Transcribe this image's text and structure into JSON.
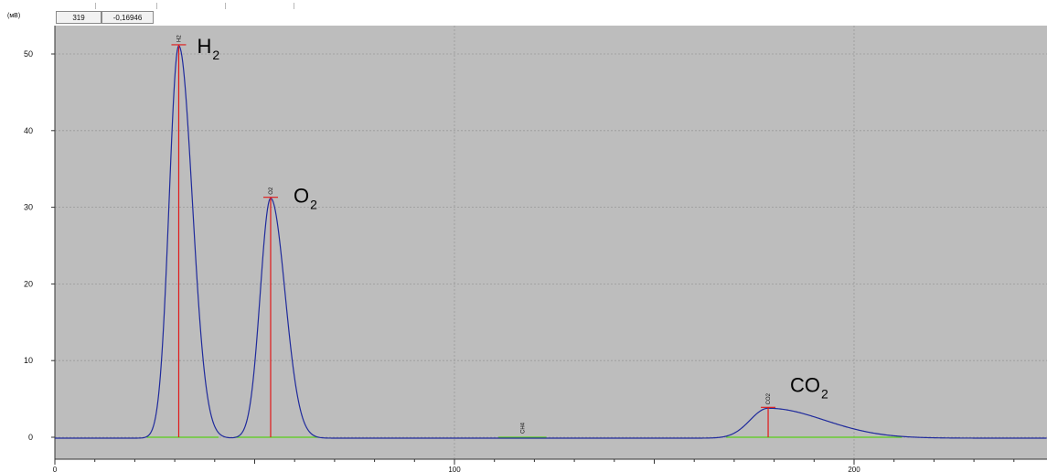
{
  "header": {
    "unit_label": "(мВ)",
    "cursor_x": "319",
    "cursor_y": "-0,16946"
  },
  "chart_data": {
    "type": "line",
    "xlim": [
      0,
      250
    ],
    "ylim": [
      -2.5,
      53
    ],
    "x_ticks": [
      0,
      100,
      200
    ],
    "y_ticks": [
      0,
      10,
      20,
      30,
      40,
      50
    ],
    "grid": true,
    "background": "#bdbdbd",
    "line_color": "#1f2a9c",
    "marker_color": "#e01818",
    "baseline_color": "#58d018",
    "peaks": [
      {
        "id": "H2",
        "tag": "H2",
        "big_label": "H",
        "sub": "2",
        "rt": 31.0,
        "height": 51.2,
        "sigma_left": 2.4,
        "sigma_right": 3.4
      },
      {
        "id": "O2",
        "tag": "O2",
        "big_label": "O",
        "sub": "2",
        "rt": 54.0,
        "height": 31.3,
        "sigma_left": 2.6,
        "sigma_right": 3.6
      },
      {
        "id": "CH4",
        "tag": "CH4",
        "big_label": "",
        "sub": "",
        "rt": 117.0,
        "height": 0.0,
        "sigma_left": 1.0,
        "sigma_right": 1.0
      },
      {
        "id": "CO2",
        "tag": "CO2",
        "big_label": "CO",
        "sub": "2",
        "rt": 178.5,
        "height": 3.9,
        "sigma_left": 4.5,
        "sigma_right": 14.0
      }
    ],
    "integration_baselines": [
      {
        "id": "H2",
        "x0": 23.0,
        "x1": 41.0
      },
      {
        "id": "O2",
        "x0": 45.0,
        "x1": 66.0
      },
      {
        "id": "CH4",
        "x0": 111.0,
        "x1": 123.0
      },
      {
        "id": "CO2",
        "x0": 168.0,
        "x1": 212.0
      }
    ]
  }
}
